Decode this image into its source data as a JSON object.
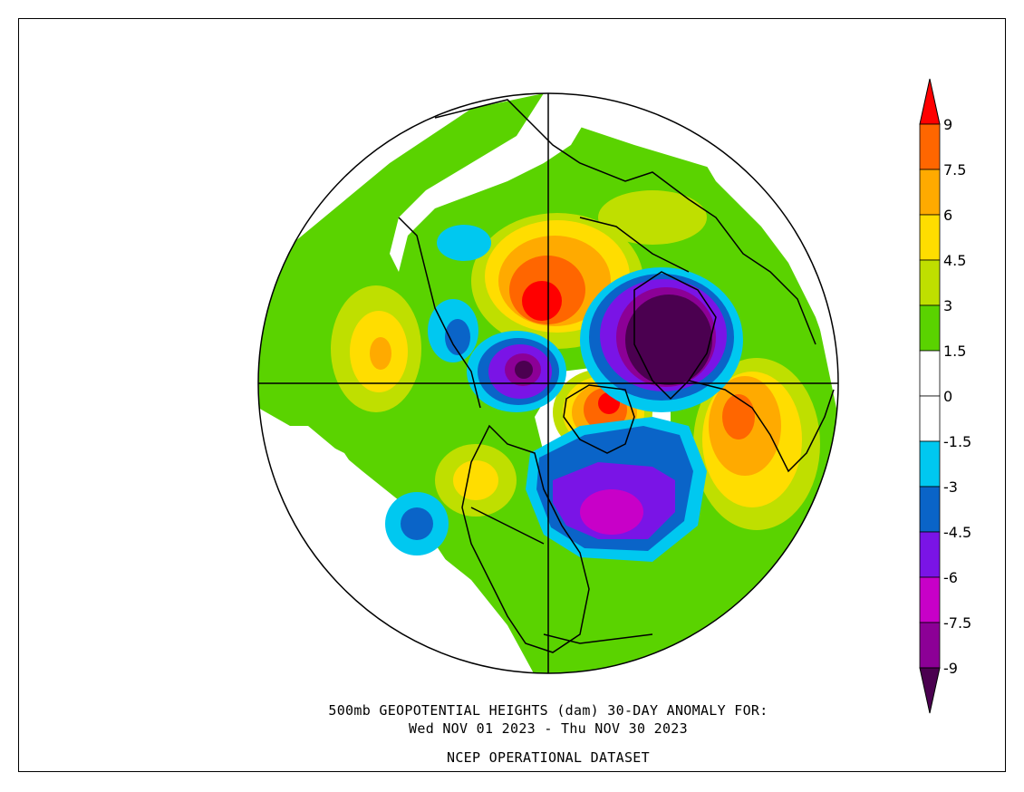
{
  "caption": {
    "line1": "500mb GEOPOTENTIAL HEIGHTS (dam)   30-DAY ANOMALY FOR:",
    "line2": "Wed NOV 01 2023 - Thu NOV 30 2023",
    "line3": "NCEP OPERATIONAL DATASET"
  },
  "colorbar": {
    "bins": [
      {
        "label": "9",
        "color": "#ff0000"
      },
      {
        "label": "7.5",
        "color": "#ff6600"
      },
      {
        "label": "6",
        "color": "#ffaa00"
      },
      {
        "label": "4.5",
        "color": "#ffdd00"
      },
      {
        "label": "3",
        "color": "#bfdf00"
      },
      {
        "label": "1.5",
        "color": "#5ad300"
      },
      {
        "label": "0",
        "color": "#ffffff"
      },
      {
        "label": "-1.5",
        "color": "#ffffff"
      },
      {
        "label": "-3",
        "color": "#00c8f0"
      },
      {
        "label": "-4.5",
        "color": "#0a64c8"
      },
      {
        "label": "-6",
        "color": "#7a14e6"
      },
      {
        "label": "-7.5",
        "color": "#c800c8"
      },
      {
        "label": "-9",
        "color": "#8c0096"
      }
    ],
    "top_arrow_color": "#ff0000",
    "bottom_arrow_color": "#4b0050"
  },
  "map": {
    "projection": "north-polar-stereographic",
    "variable": "500mb geopotential height anomaly"
  }
}
